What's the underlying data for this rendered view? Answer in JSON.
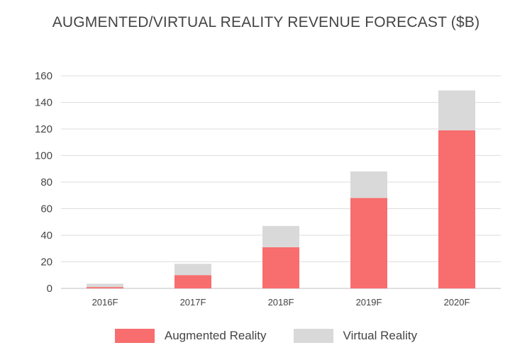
{
  "chart_data": {
    "type": "bar",
    "stacked": true,
    "title": "AUGMENTED/VIRTUAL REALITY REVENUE FORECAST ($B)",
    "xlabel": "",
    "ylabel": "",
    "categories": [
      "2016F",
      "2017F",
      "2018F",
      "2019F",
      "2020F"
    ],
    "ylim": [
      0,
      160
    ],
    "yticks": [
      0,
      20,
      40,
      60,
      80,
      100,
      120,
      140,
      160
    ],
    "grid": true,
    "legend_position": "bottom",
    "series": [
      {
        "name": "Augmented Reality",
        "color": "#f86d6d",
        "values": [
          1,
          10,
          31,
          68,
          119
        ]
      },
      {
        "name": "Virtual Reality",
        "color": "#d9d9d9",
        "values": [
          2.5,
          8.5,
          16,
          20,
          30
        ]
      }
    ]
  }
}
